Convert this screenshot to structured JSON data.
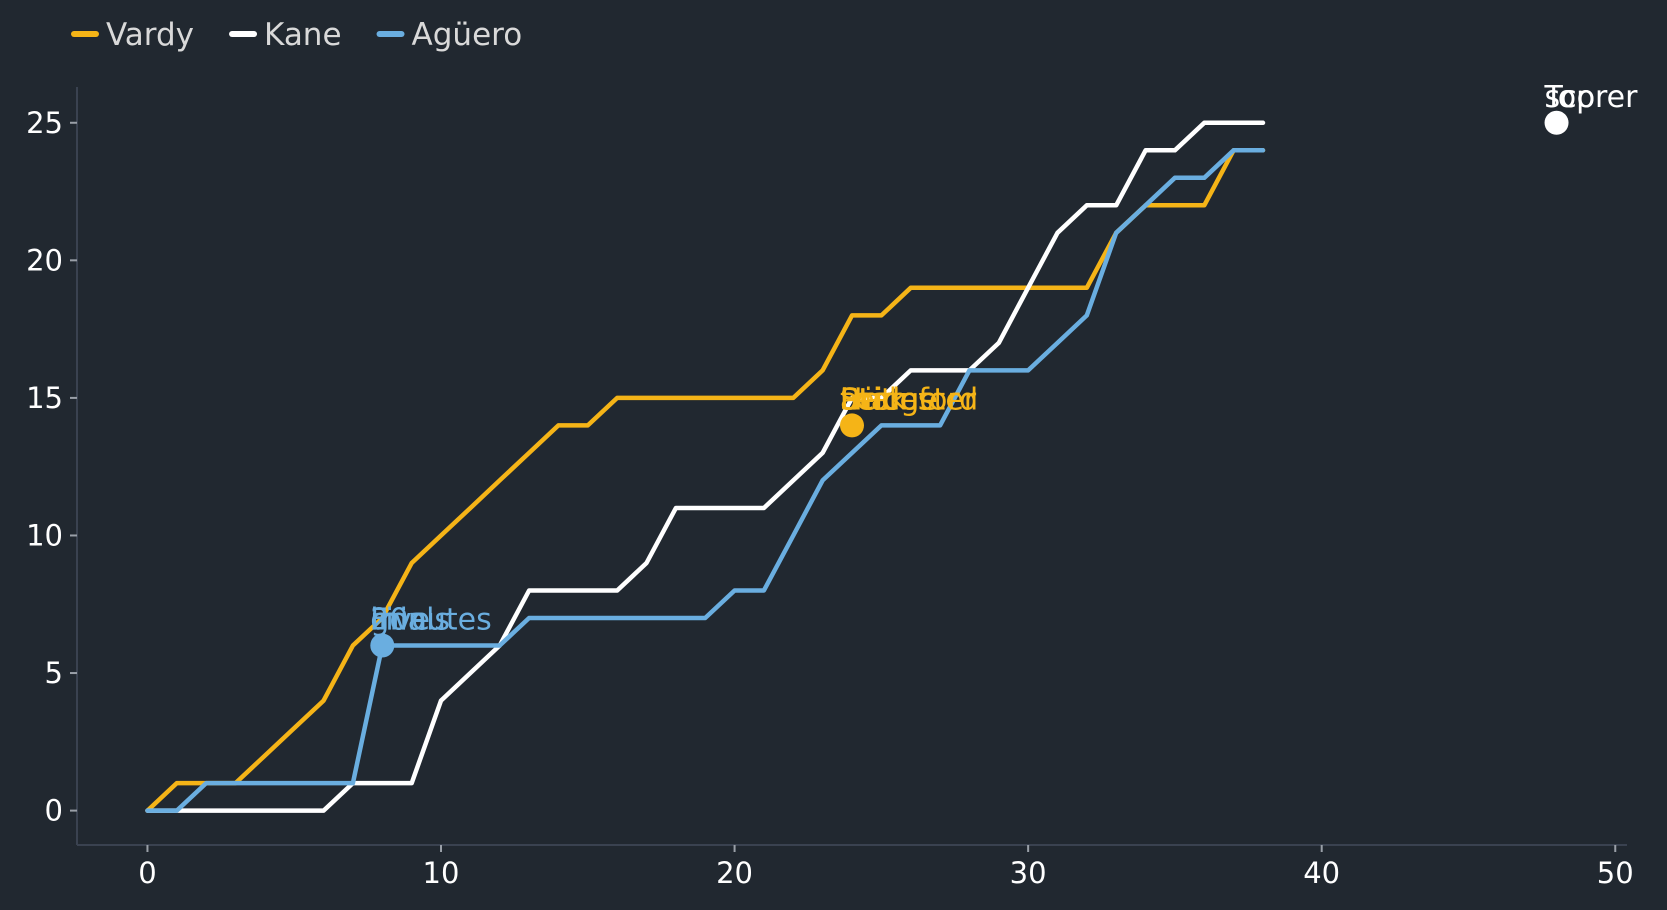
{
  "chart_data": {
    "type": "line",
    "title": "",
    "xlabel": "",
    "ylabel": "",
    "xlim": [
      -2.4,
      50.4
    ],
    "ylim": [
      -1.25,
      26.3
    ],
    "xticks": [
      0,
      10,
      20,
      30,
      40,
      50
    ],
    "yticks": [
      0,
      5,
      10,
      15,
      20,
      25
    ],
    "grid": false,
    "legend_position": "top-left",
    "series": [
      {
        "name": "Vardy",
        "color": "#f5b417",
        "x": [
          0,
          1,
          2,
          3,
          4,
          5,
          6,
          7,
          8,
          9,
          10,
          11,
          12,
          13,
          14,
          15,
          16,
          17,
          18,
          19,
          20,
          21,
          22,
          23,
          24,
          25,
          26,
          27,
          28,
          29,
          30,
          31,
          32,
          33,
          34,
          35,
          36,
          37,
          38
        ],
        "y": [
          0,
          1,
          1,
          1,
          2,
          3,
          4,
          6,
          7,
          9,
          10,
          11,
          12,
          13,
          14,
          14,
          15,
          15,
          15,
          15,
          15,
          15,
          15,
          16,
          18,
          18,
          19,
          19,
          19,
          19,
          19,
          19,
          19,
          21,
          22,
          22,
          22,
          24,
          24
        ]
      },
      {
        "name": "Kane",
        "color": "#ffffff",
        "x": [
          0,
          1,
          2,
          3,
          4,
          5,
          6,
          7,
          8,
          9,
          10,
          11,
          12,
          13,
          14,
          15,
          16,
          17,
          18,
          19,
          20,
          21,
          22,
          23,
          24,
          25,
          26,
          27,
          28,
          29,
          30,
          31,
          32,
          33,
          34,
          35,
          36,
          37,
          38
        ],
        "y": [
          0,
          0,
          0,
          0,
          0,
          0,
          0,
          1,
          1,
          1,
          4,
          5,
          6,
          8,
          8,
          8,
          8,
          9,
          11,
          11,
          11,
          11,
          12,
          13,
          15,
          15,
          16,
          16,
          16,
          17,
          19,
          21,
          22,
          22,
          24,
          24,
          25,
          25,
          25
        ]
      },
      {
        "name": "Agüero",
        "color": "#6aaee0",
        "x": [
          0,
          1,
          2,
          3,
          4,
          5,
          6,
          7,
          8,
          9,
          10,
          11,
          12,
          13,
          14,
          15,
          16,
          17,
          18,
          19,
          20,
          21,
          22,
          23,
          24,
          25,
          26,
          27,
          28,
          29,
          30,
          31,
          32,
          33,
          34,
          35,
          36,
          37,
          38
        ],
        "y": [
          0,
          0,
          1,
          1,
          1,
          1,
          1,
          1,
          6,
          6,
          6,
          6,
          6,
          7,
          7,
          7,
          7,
          7,
          7,
          7,
          8,
          8,
          10,
          12,
          13,
          14,
          14,
          14,
          16,
          16,
          16,
          17,
          18,
          21,
          22,
          23,
          23,
          24,
          24
        ]
      }
    ],
    "annotations": [
      {
        "x": 24,
        "y": 14,
        "color": "#f5b417",
        "labels": [
          "Hat",
          "trick",
          "at",
          "Leicester",
          "Stamford",
          "Bridge"
        ]
      },
      {
        "x": 8,
        "y": 6,
        "color": "#6aaee0",
        "labels": [
          "Five",
          "goals",
          "in",
          "20",
          "minutes"
        ]
      },
      {
        "x": 48,
        "y": 25,
        "color": "#ffffff",
        "labels": [
          "Top",
          "scorer"
        ]
      }
    ]
  }
}
